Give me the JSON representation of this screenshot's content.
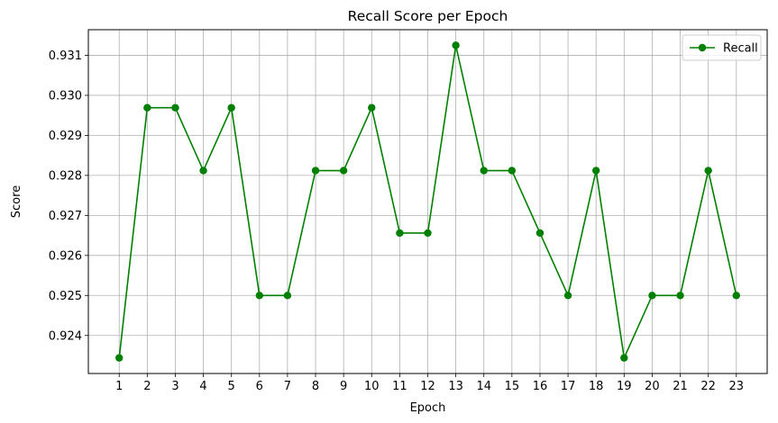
{
  "chart_data": {
    "type": "line",
    "title": "Recall Score per Epoch",
    "xlabel": "Epoch",
    "ylabel": "Score",
    "x": [
      1,
      2,
      3,
      4,
      5,
      6,
      7,
      8,
      9,
      10,
      11,
      12,
      13,
      14,
      15,
      16,
      17,
      18,
      19,
      20,
      21,
      22,
      23
    ],
    "x_tick_labels": [
      "1",
      "2",
      "3",
      "4",
      "5",
      "6",
      "7",
      "8",
      "9",
      "10",
      "11",
      "12",
      "13",
      "14",
      "15",
      "16",
      "17",
      "18",
      "19",
      "20",
      "21",
      "22",
      "23"
    ],
    "series": [
      {
        "name": "Recall",
        "color": "#008000",
        "marker": "circle",
        "values": [
          0.92344,
          0.92969,
          0.92969,
          0.92812,
          0.92969,
          0.925,
          0.925,
          0.92812,
          0.92812,
          0.92969,
          0.92656,
          0.92656,
          0.93125,
          0.92812,
          0.92812,
          0.92656,
          0.925,
          0.92812,
          0.92344,
          0.925,
          0.925,
          0.92812,
          0.925
        ]
      }
    ],
    "y_ticks": [
      0.924,
      0.925,
      0.926,
      0.927,
      0.928,
      0.929,
      0.93,
      0.931
    ],
    "y_tick_labels": [
      "0.924",
      "0.925",
      "0.926",
      "0.927",
      "0.928",
      "0.929",
      "0.930",
      "0.931"
    ],
    "xlim": [
      -0.1,
      24.1
    ],
    "ylim": [
      0.92305,
      0.93164
    ],
    "grid": true,
    "legend_position": "top-right"
  }
}
